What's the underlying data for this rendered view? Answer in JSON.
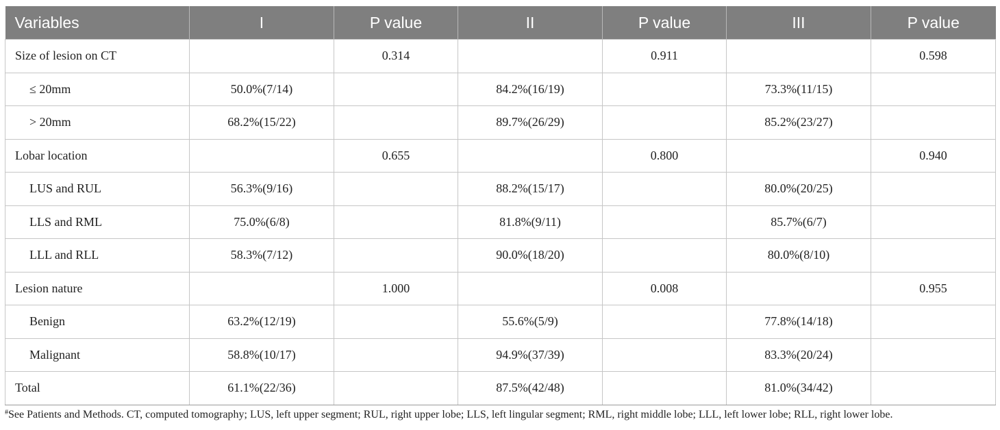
{
  "table": {
    "headers": [
      "Variables",
      "I",
      "P value",
      "II",
      "P value",
      "III",
      "P value"
    ],
    "rows": [
      {
        "label": "Size of lesion on CT",
        "i": "",
        "p1": "0.314",
        "ii": "",
        "p2": "0.911",
        "iii": "",
        "p3": "0.598"
      },
      {
        "label": "≤ 20mm",
        "i": "50.0%(7/14)",
        "p1": "",
        "ii": "84.2%(16/19)",
        "p2": "",
        "iii": "73.3%(11/15)",
        "p3": ""
      },
      {
        "label": "> 20mm",
        "i": "68.2%(15/22)",
        "p1": "",
        "ii": "89.7%(26/29)",
        "p2": "",
        "iii": "85.2%(23/27)",
        "p3": ""
      },
      {
        "label": "Lobar location",
        "i": "",
        "p1": "0.655",
        "ii": "",
        "p2": "0.800",
        "iii": "",
        "p3": "0.940"
      },
      {
        "label": "LUS and RUL",
        "i": "56.3%(9/16)",
        "p1": "",
        "ii": "88.2%(15/17)",
        "p2": "",
        "iii": "80.0%(20/25)",
        "p3": ""
      },
      {
        "label": "LLS and RML",
        "i": "75.0%(6/8)",
        "p1": "",
        "ii": "81.8%(9/11)",
        "p2": "",
        "iii": "85.7%(6/7)",
        "p3": ""
      },
      {
        "label": "LLL and RLL",
        "i": "58.3%(7/12)",
        "p1": "",
        "ii": "90.0%(18/20)",
        "p2": "",
        "iii": "80.0%(8/10)",
        "p3": ""
      },
      {
        "label": "Lesion nature",
        "i": "",
        "p1": "1.000",
        "ii": "",
        "p2": "0.008",
        "iii": "",
        "p3": "0.955"
      },
      {
        "label": "Benign",
        "i": "63.2%(12/19)",
        "p1": "",
        "ii": "55.6%(5/9)",
        "p2": "",
        "iii": "77.8%(14/18)",
        "p3": ""
      },
      {
        "label": "Malignant",
        "i": "58.8%(10/17)",
        "p1": "",
        "ii": "94.9%(37/39)",
        "p2": "",
        "iii": "83.3%(20/24)",
        "p3": ""
      },
      {
        "label": "Total",
        "i": "61.1%(22/36)",
        "p1": "",
        "ii": "87.5%(42/48)",
        "p2": "",
        "iii": "81.0%(34/42)",
        "p3": ""
      }
    ]
  },
  "footnote": {
    "marker": "#",
    "text": "See Patients and Methods. CT, computed tomography; LUS, left upper segment; RUL, right upper lobe; LLS, left lingular segment; RML, right middle lobe; LLL, left lower lobe; RLL, right lower lobe."
  },
  "colors": {
    "header_bg": "#7f7f7f",
    "header_text": "#ffffff",
    "grid_line": "#c6c6c6",
    "body_text": "#222222"
  }
}
